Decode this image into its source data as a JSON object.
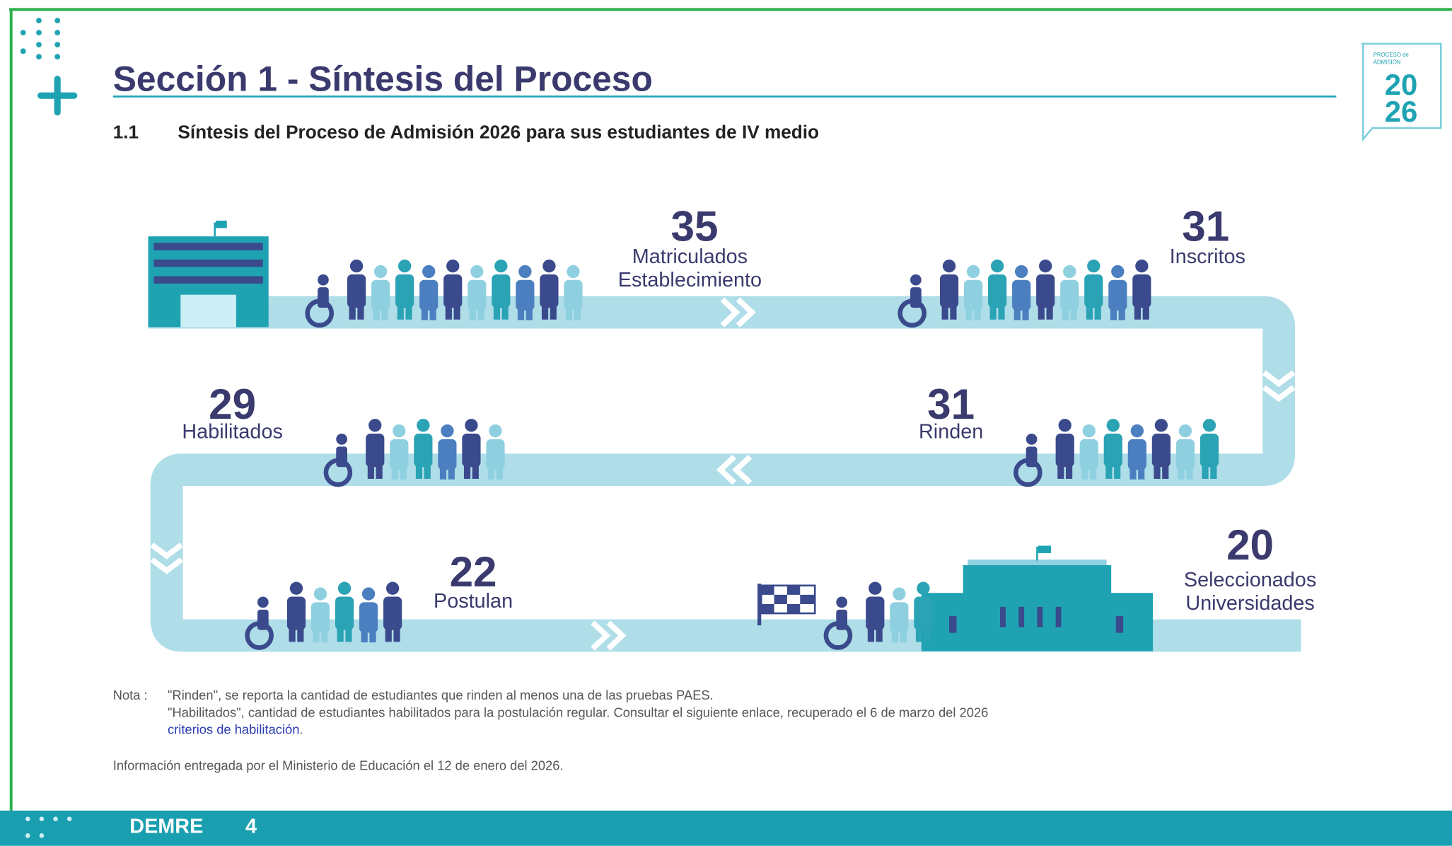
{
  "header": {
    "title": "Sección 1 - Síntesis del Proceso",
    "subtitle_number": "1.1",
    "subtitle": "Síntesis del Proceso de Admisión 2026 para sus estudiantes de IV medio"
  },
  "logo": {
    "line1": "PROCESO de",
    "line2": "ADMISIÓN",
    "year_top": "20",
    "year_bottom": "26"
  },
  "stages": [
    {
      "value": "35",
      "label": [
        "Matriculados",
        "Establecimiento"
      ]
    },
    {
      "value": "31",
      "label": [
        "Inscritos"
      ]
    },
    {
      "value": "31",
      "label": [
        "Rinden"
      ]
    },
    {
      "value": "29",
      "label": [
        "Habilitados"
      ]
    },
    {
      "value": "22",
      "label": [
        "Postulan"
      ]
    },
    {
      "value": "20",
      "label": [
        "Seleccionados",
        "Universidades"
      ]
    }
  ],
  "note": {
    "label": "Nota :",
    "lines": [
      "\"Rinden\", se reporta la cantidad de estudiantes que rinden al menos una de las pruebas PAES.",
      "\"Habilitados\", cantidad de estudiantes habilitados para la postulación regular. Consultar el siguiente enlace, recuperado el 6 de marzo del 2026"
    ],
    "link": "criterios de habilitación",
    "link_suffix": "."
  },
  "source": "Información entregada por el Ministerio de Educación el 12 de enero del 2026.",
  "footer": {
    "brand": "DEMRE",
    "page": "4"
  }
}
